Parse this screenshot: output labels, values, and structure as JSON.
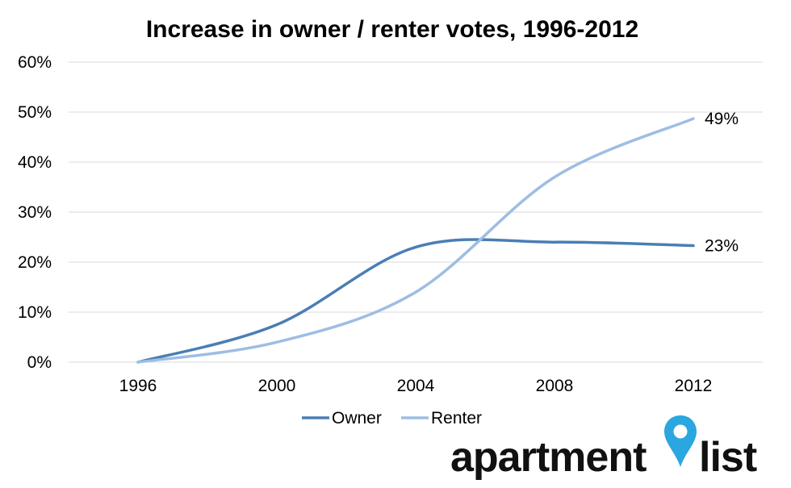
{
  "chart_data": {
    "type": "line",
    "title": "Increase in owner / renter votes, 1996-2012",
    "x": [
      1996,
      2000,
      2004,
      2008,
      2012
    ],
    "x_tick_labels": [
      "1996",
      "2000",
      "2004",
      "2008",
      "2012"
    ],
    "ylim": [
      0,
      60
    ],
    "y_tick_labels": [
      "0%",
      "10%",
      "20%",
      "30%",
      "40%",
      "50%",
      "60%"
    ],
    "grid": true,
    "legend_position": "bottom",
    "series": [
      {
        "name": "Owner",
        "color": "#4a7eb4",
        "values": [
          0,
          7.5,
          23,
          24,
          23.3
        ],
        "end_label": "23%"
      },
      {
        "name": "Renter",
        "color": "#9ebde3",
        "values": [
          0,
          4,
          14,
          37,
          48.7
        ],
        "end_label": "49%"
      }
    ]
  },
  "logo": {
    "text_left": "apartment",
    "text_right": "list",
    "pin_color": "#2aa6e0",
    "icon": "location-pin-icon"
  }
}
